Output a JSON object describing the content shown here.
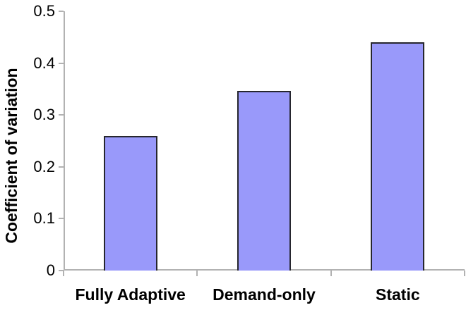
{
  "chart_data": {
    "type": "bar",
    "title": "",
    "ylabel": "Coefficient of variation",
    "xlabel": "",
    "categories": [
      "Fully Adaptive",
      "Demand-only",
      "Static"
    ],
    "values": [
      0.26,
      0.347,
      0.44
    ],
    "ylim": [
      0,
      0.5
    ],
    "yticks": [
      0,
      0.1,
      0.2,
      0.3,
      0.4,
      0.5
    ],
    "ytick_labels": [
      "0",
      "0.1",
      "0.2",
      "0.3",
      "0.4",
      "0.5"
    ],
    "grid": false,
    "legend": "none",
    "bar_fill_color": "#9999fa",
    "bar_border_color": "#26262e",
    "axis_color": "#b2b2b2",
    "text_color": "#000000",
    "background_color": "#ffffff"
  }
}
